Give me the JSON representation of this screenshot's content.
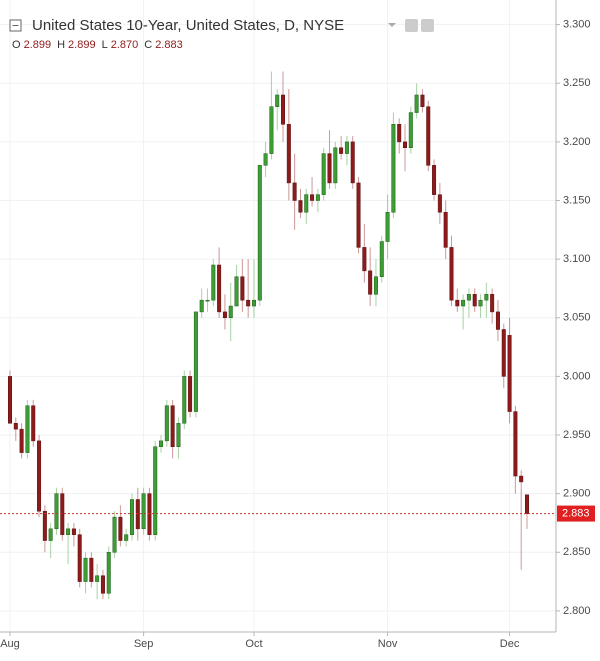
{
  "chart_data": {
    "type": "candlestick",
    "title": "United States 10-Year, United States, D, NYSE",
    "header": [
      {
        "label": "O",
        "value": "2.899"
      },
      {
        "label": "H",
        "value": "2.899"
      },
      {
        "label": "L",
        "value": "2.870"
      },
      {
        "label": "C",
        "value": "2.883"
      }
    ],
    "categories": [
      "Aug",
      null,
      null,
      null,
      null,
      null,
      null,
      null,
      null,
      null,
      null,
      null,
      null,
      null,
      null,
      null,
      null,
      null,
      null,
      null,
      null,
      null,
      null,
      "Sep",
      null,
      null,
      null,
      null,
      null,
      null,
      null,
      null,
      null,
      null,
      null,
      null,
      null,
      null,
      null,
      null,
      null,
      null,
      "Oct",
      null,
      null,
      null,
      null,
      null,
      null,
      null,
      null,
      null,
      null,
      null,
      null,
      null,
      null,
      null,
      null,
      null,
      null,
      null,
      null,
      null,
      null,
      "Nov",
      null,
      null,
      null,
      null,
      null,
      null,
      null,
      null,
      null,
      null,
      null,
      null,
      null,
      null,
      null,
      null,
      null,
      null,
      null,
      null,
      "Dec",
      null,
      null,
      null
    ],
    "open": [
      3.0,
      2.96,
      2.955,
      2.935,
      2.975,
      2.945,
      2.885,
      2.86,
      2.87,
      2.9,
      2.865,
      2.87,
      2.865,
      2.825,
      2.845,
      2.825,
      2.83,
      2.815,
      2.85,
      2.88,
      2.86,
      2.865,
      2.895,
      2.87,
      2.9,
      2.865,
      2.94,
      2.945,
      2.975,
      2.94,
      2.96,
      3.0,
      2.97,
      3.055,
      3.065,
      3.065,
      3.095,
      3.055,
      3.05,
      3.06,
      3.085,
      3.065,
      3.06,
      3.065,
      3.18,
      3.19,
      3.23,
      3.24,
      3.215,
      3.165,
      3.15,
      3.14,
      3.155,
      3.15,
      3.155,
      3.19,
      3.165,
      3.195,
      3.19,
      3.2,
      3.165,
      3.11,
      3.09,
      3.07,
      3.085,
      3.115,
      3.14,
      3.215,
      3.2,
      3.195,
      3.225,
      3.24,
      3.23,
      3.18,
      3.155,
      3.14,
      3.11,
      3.065,
      3.06,
      3.065,
      3.07,
      3.06,
      3.065,
      3.07,
      3.055,
      3.04,
      3.035,
      2.97,
      2.915,
      2.899
    ],
    "high": [
      3.005,
      2.965,
      2.96,
      2.98,
      2.98,
      2.95,
      2.89,
      2.875,
      2.905,
      2.905,
      2.875,
      2.875,
      2.87,
      2.85,
      2.85,
      2.84,
      2.835,
      2.855,
      2.885,
      2.89,
      2.87,
      2.9,
      2.905,
      2.905,
      2.905,
      2.945,
      2.95,
      2.98,
      2.98,
      2.965,
      3.005,
      3.005,
      3.055,
      3.075,
      3.075,
      3.1,
      3.11,
      3.07,
      3.08,
      3.095,
      3.1,
      3.1,
      3.1,
      3.18,
      3.2,
      3.26,
      3.245,
      3.26,
      3.245,
      3.19,
      3.16,
      3.16,
      3.17,
      3.16,
      3.195,
      3.21,
      3.2,
      3.205,
      3.205,
      3.205,
      3.17,
      3.13,
      3.11,
      3.1,
      3.12,
      3.155,
      3.225,
      3.22,
      3.215,
      3.23,
      3.25,
      3.245,
      3.235,
      3.185,
      3.165,
      3.15,
      3.12,
      3.075,
      3.07,
      3.075,
      3.075,
      3.07,
      3.08,
      3.075,
      3.065,
      3.045,
      3.05,
      2.975,
      2.92,
      2.899
    ],
    "low": [
      2.96,
      2.945,
      2.93,
      2.93,
      2.94,
      2.88,
      2.85,
      2.845,
      2.865,
      2.86,
      2.84,
      2.855,
      2.82,
      2.815,
      2.82,
      2.81,
      2.81,
      2.81,
      2.845,
      2.855,
      2.855,
      2.86,
      2.86,
      2.865,
      2.86,
      2.86,
      2.935,
      2.94,
      2.93,
      2.93,
      2.955,
      2.965,
      2.965,
      3.05,
      3.055,
      3.06,
      3.05,
      3.04,
      3.03,
      3.06,
      3.055,
      3.05,
      3.05,
      3.06,
      3.17,
      3.185,
      3.21,
      3.2,
      3.15,
      3.125,
      3.135,
      3.13,
      3.145,
      3.14,
      3.15,
      3.16,
      3.16,
      3.185,
      3.18,
      3.16,
      3.105,
      3.08,
      3.06,
      3.06,
      3.08,
      3.1,
      3.135,
      3.19,
      3.175,
      3.19,
      3.22,
      3.225,
      3.175,
      3.15,
      3.13,
      3.1,
      3.06,
      3.055,
      3.04,
      3.05,
      3.055,
      3.05,
      3.05,
      3.045,
      3.03,
      2.99,
      2.96,
      2.9,
      2.835,
      2.87
    ],
    "close": [
      2.96,
      2.955,
      2.935,
      2.975,
      2.945,
      2.885,
      2.86,
      2.87,
      2.9,
      2.865,
      2.87,
      2.865,
      2.825,
      2.845,
      2.825,
      2.83,
      2.815,
      2.85,
      2.88,
      2.86,
      2.865,
      2.895,
      2.87,
      2.9,
      2.865,
      2.94,
      2.945,
      2.975,
      2.94,
      2.96,
      3.0,
      2.97,
      3.055,
      3.065,
      3.065,
      3.095,
      3.055,
      3.05,
      3.06,
      3.085,
      3.065,
      3.06,
      3.065,
      3.18,
      3.19,
      3.23,
      3.24,
      3.215,
      3.165,
      3.15,
      3.14,
      3.155,
      3.15,
      3.155,
      3.19,
      3.165,
      3.195,
      3.19,
      3.2,
      3.165,
      3.11,
      3.09,
      3.07,
      3.085,
      3.115,
      3.14,
      3.215,
      3.2,
      3.195,
      3.225,
      3.24,
      3.23,
      3.18,
      3.155,
      3.14,
      3.11,
      3.065,
      3.06,
      3.065,
      3.07,
      3.06,
      3.065,
      3.07,
      3.055,
      3.04,
      3.0,
      2.97,
      2.915,
      2.91,
      2.883
    ],
    "up_color": "#3e9c35",
    "down_color": "#8e1b1b",
    "ylim": [
      2.782,
      3.321
    ],
    "yticks": [
      {
        "value": 2.8,
        "label": "2.800"
      },
      {
        "value": 2.85,
        "label": "2.850"
      },
      {
        "value": 2.9,
        "label": "2.900"
      },
      {
        "value": 2.95,
        "label": "2.950"
      },
      {
        "value": 3.0,
        "label": "3.000"
      },
      {
        "value": 3.05,
        "label": "3.050"
      },
      {
        "value": 3.1,
        "label": "3.100"
      },
      {
        "value": 3.15,
        "label": "3.150"
      },
      {
        "value": 3.2,
        "label": "3.200"
      },
      {
        "value": 3.25,
        "label": "3.250"
      },
      {
        "value": 3.3,
        "label": "3.300"
      }
    ],
    "last_price": {
      "value": 2.883,
      "label": "2.883"
    },
    "grid": true
  }
}
